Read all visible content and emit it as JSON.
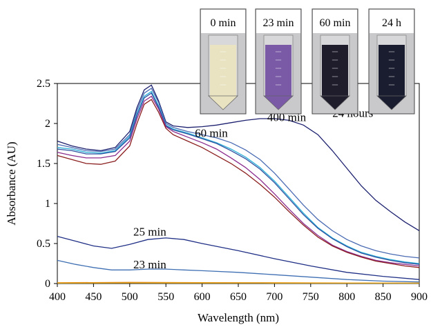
{
  "chart_data": {
    "type": "line",
    "title": "",
    "xlabel": "Wavelength (nm)",
    "ylabel": "Absorbance (AU)",
    "xlim": [
      400,
      900
    ],
    "ylim": [
      0,
      2.5
    ],
    "x_ticks": [
      "400",
      "450",
      "500",
      "550",
      "600",
      "650",
      "700",
      "750",
      "800",
      "850",
      "900"
    ],
    "y_ticks": [
      "0",
      "0.5",
      "1",
      "1.5",
      "2",
      "2.5"
    ],
    "grid": false,
    "legend": "none",
    "annotations": [
      {
        "text": "24 hours",
        "x": 780,
        "y": 2.08
      },
      {
        "text": "400 min",
        "x": 690,
        "y": 2.03
      },
      {
        "text": "60 min",
        "x": 590,
        "y": 1.83
      },
      {
        "text": "25 min",
        "x": 505,
        "y": 0.6
      },
      {
        "text": "23 min",
        "x": 505,
        "y": 0.19
      }
    ],
    "series": [
      {
        "color": "#1b1f6e",
        "x": [
          400,
          420,
          440,
          460,
          480,
          500,
          510,
          520,
          530,
          540,
          550,
          560,
          580,
          600,
          620,
          640,
          660,
          680,
          700,
          720,
          740,
          760,
          780,
          800,
          820,
          840,
          860,
          880,
          900
        ],
        "y": [
          1.78,
          1.72,
          1.68,
          1.66,
          1.7,
          1.9,
          2.2,
          2.42,
          2.48,
          2.28,
          2.02,
          1.97,
          1.95,
          1.96,
          1.98,
          2.01,
          2.04,
          2.06,
          2.06,
          2.04,
          1.98,
          1.86,
          1.66,
          1.44,
          1.22,
          1.04,
          0.9,
          0.77,
          0.66
        ]
      },
      {
        "color": "#4a6bb3",
        "x": [
          400,
          420,
          440,
          460,
          480,
          500,
          510,
          520,
          530,
          540,
          550,
          560,
          580,
          600,
          620,
          640,
          660,
          680,
          700,
          720,
          740,
          760,
          780,
          800,
          820,
          840,
          860,
          880,
          900
        ],
        "y": [
          1.74,
          1.7,
          1.66,
          1.65,
          1.68,
          1.86,
          2.16,
          2.38,
          2.44,
          2.26,
          2.0,
          1.95,
          1.9,
          1.86,
          1.82,
          1.76,
          1.67,
          1.55,
          1.38,
          1.18,
          0.98,
          0.8,
          0.66,
          0.55,
          0.47,
          0.41,
          0.37,
          0.34,
          0.32
        ]
      },
      {
        "color": "#2ab0d8",
        "x": [
          400,
          420,
          440,
          460,
          480,
          500,
          510,
          520,
          530,
          540,
          550,
          560,
          580,
          600,
          620,
          640,
          660,
          680,
          700,
          720,
          740,
          760,
          780,
          800,
          820,
          840,
          860,
          880,
          900
        ],
        "y": [
          1.7,
          1.68,
          1.64,
          1.63,
          1.66,
          1.84,
          2.12,
          2.34,
          2.4,
          2.22,
          1.98,
          1.93,
          1.88,
          1.82,
          1.76,
          1.68,
          1.58,
          1.45,
          1.28,
          1.08,
          0.88,
          0.7,
          0.57,
          0.47,
          0.39,
          0.34,
          0.3,
          0.27,
          0.25
        ]
      },
      {
        "color": "#2d4fa0",
        "x": [
          400,
          420,
          440,
          460,
          480,
          500,
          510,
          520,
          530,
          540,
          550,
          560,
          580,
          600,
          620,
          640,
          660,
          680,
          700,
          720,
          740,
          760,
          780,
          800,
          820,
          840,
          860,
          880,
          900
        ],
        "y": [
          1.68,
          1.66,
          1.62,
          1.62,
          1.65,
          1.82,
          2.1,
          2.32,
          2.38,
          2.2,
          1.97,
          1.92,
          1.87,
          1.81,
          1.75,
          1.66,
          1.56,
          1.43,
          1.26,
          1.06,
          0.86,
          0.69,
          0.56,
          0.46,
          0.38,
          0.33,
          0.29,
          0.26,
          0.24
        ]
      },
      {
        "color": "#8a2b8e",
        "x": [
          400,
          420,
          440,
          460,
          480,
          500,
          510,
          520,
          530,
          540,
          550,
          560,
          580,
          600,
          620,
          640,
          660,
          680,
          700,
          720,
          740,
          760,
          780,
          800,
          820,
          840,
          860,
          880,
          900
        ],
        "y": [
          1.64,
          1.6,
          1.57,
          1.57,
          1.6,
          1.78,
          2.06,
          2.28,
          2.34,
          2.18,
          1.96,
          1.9,
          1.83,
          1.76,
          1.68,
          1.57,
          1.45,
          1.3,
          1.12,
          0.93,
          0.75,
          0.6,
          0.48,
          0.4,
          0.34,
          0.29,
          0.26,
          0.24,
          0.22
        ]
      },
      {
        "color": "#8b1e1e",
        "x": [
          400,
          420,
          440,
          460,
          480,
          500,
          510,
          520,
          530,
          540,
          550,
          560,
          580,
          600,
          620,
          640,
          660,
          680,
          700,
          720,
          740,
          760,
          780,
          800,
          820,
          840,
          860,
          880,
          900
        ],
        "y": [
          1.6,
          1.55,
          1.5,
          1.49,
          1.53,
          1.72,
          2.0,
          2.24,
          2.3,
          2.14,
          1.94,
          1.86,
          1.78,
          1.7,
          1.6,
          1.5,
          1.38,
          1.24,
          1.08,
          0.9,
          0.73,
          0.58,
          0.47,
          0.39,
          0.33,
          0.28,
          0.25,
          0.22,
          0.2
        ]
      },
      {
        "color": "#1f2f86",
        "x": [
          400,
          425,
          450,
          475,
          500,
          525,
          550,
          575,
          600,
          650,
          700,
          750,
          800,
          850,
          900
        ],
        "y": [
          0.59,
          0.53,
          0.47,
          0.44,
          0.49,
          0.55,
          0.57,
          0.55,
          0.5,
          0.41,
          0.31,
          0.22,
          0.14,
          0.09,
          0.05
        ]
      },
      {
        "color": "#3f6fb3",
        "x": [
          400,
          425,
          450,
          475,
          500,
          525,
          550,
          575,
          600,
          650,
          700,
          750,
          800,
          850,
          900
        ],
        "y": [
          0.29,
          0.24,
          0.2,
          0.17,
          0.17,
          0.18,
          0.18,
          0.17,
          0.16,
          0.14,
          0.11,
          0.08,
          0.05,
          0.03,
          0.02
        ]
      },
      {
        "color": "#e07b10",
        "x": [
          400,
          500,
          600,
          700,
          800,
          900
        ],
        "y": [
          0.01,
          0.015,
          0.012,
          0.01,
          0.008,
          0.006
        ]
      },
      {
        "color": "#e8b020",
        "x": [
          400,
          500,
          600,
          700,
          800,
          900
        ],
        "y": [
          0.005,
          0.008,
          0.007,
          0.006,
          0.005,
          0.004
        ]
      }
    ]
  },
  "inset": {
    "labels": [
      "0 min",
      "23 min",
      "60 min",
      "24 h"
    ],
    "colors": [
      "#e9e3c2",
      "#7a5aa6",
      "#1f1c2c",
      "#1a1d30"
    ]
  }
}
